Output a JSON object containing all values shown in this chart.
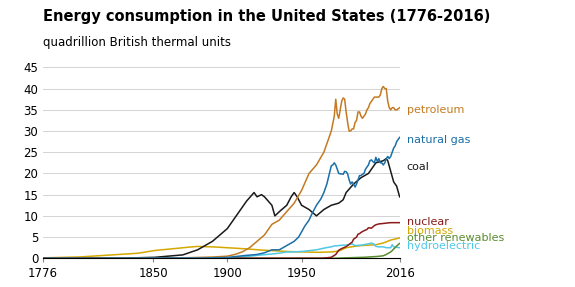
{
  "title": "Energy consumption in the United States (1776-2016)",
  "subtitle": "quadrillion British thermal units",
  "xlim": [
    1776,
    2016
  ],
  "ylim": [
    0,
    46
  ],
  "yticks": [
    0,
    5,
    10,
    15,
    20,
    25,
    30,
    35,
    40,
    45
  ],
  "xticks": [
    1776,
    1850,
    1900,
    1950,
    2016
  ],
  "colors": {
    "petroleum": "#c47a20",
    "natural_gas": "#1a6fa8",
    "coal": "#1a1a1a",
    "nuclear": "#8b1a1a",
    "biomass": "#d4a800",
    "other_renewables": "#5a8c2f",
    "hydroelectric": "#50c8e8"
  },
  "label_colors": {
    "petroleum": "#c47a20",
    "natural_gas": "#1a6fa8",
    "coal": "#1a1a1a",
    "nuclear": "#8b1a1a",
    "biomass": "#d4a800",
    "other_renewables": "#5a8c2f",
    "hydroelectric": "#50c8e8"
  },
  "background": "#ffffff",
  "grid_color": "#cccccc",
  "title_fontsize": 10.5,
  "subtitle_fontsize": 8.5,
  "label_fontsize": 8.0,
  "tick_fontsize": 8.5
}
